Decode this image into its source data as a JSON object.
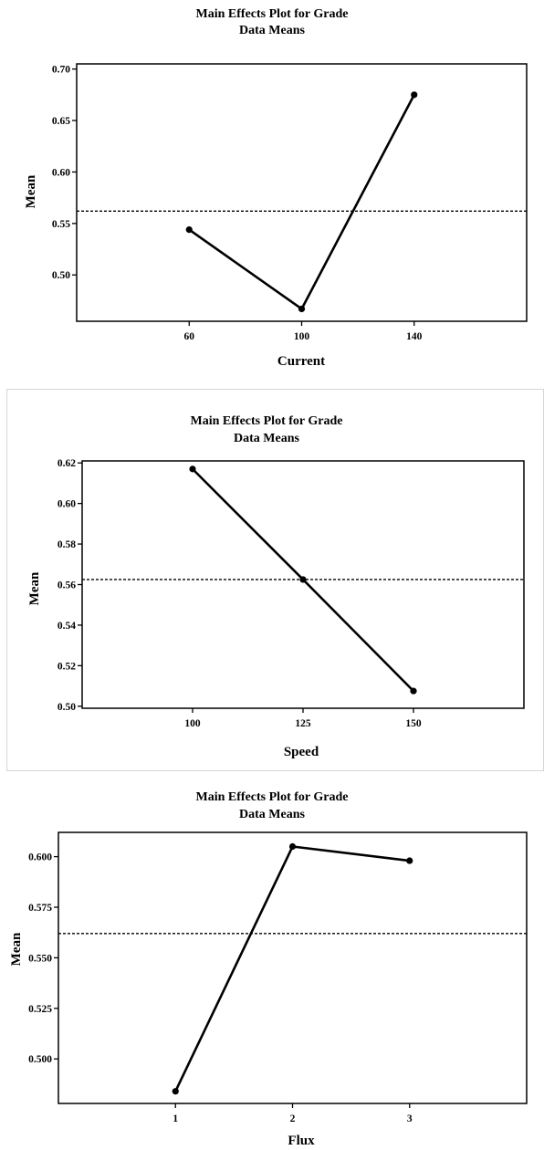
{
  "chart_data": [
    {
      "type": "line",
      "title": "Main Effects Plot for Grade",
      "subtitle": "Data Means",
      "xlabel": "Current",
      "ylabel": "Mean",
      "categories": [
        "60",
        "100",
        "140"
      ],
      "values": [
        0.544,
        0.467,
        0.675
      ],
      "reference_line": 0.562,
      "yticks": [
        0.5,
        0.55,
        0.6,
        0.65,
        0.7
      ],
      "ytick_labels": [
        "0.50",
        "0.55",
        "0.60",
        "0.65",
        "0.70"
      ],
      "ylim": [
        0.455,
        0.705
      ],
      "grid": false
    },
    {
      "type": "line",
      "title": "Main Effects Plot for Grade",
      "subtitle": "Data Means",
      "xlabel": "Speed",
      "ylabel": "Mean",
      "categories": [
        "100",
        "125",
        "150"
      ],
      "values": [
        0.617,
        0.5625,
        0.5075
      ],
      "reference_line": 0.5625,
      "yticks": [
        0.5,
        0.52,
        0.54,
        0.56,
        0.58,
        0.6,
        0.62
      ],
      "ytick_labels": [
        "0.50",
        "0.52",
        "0.54",
        "0.56",
        "0.58",
        "0.60",
        "0.62"
      ],
      "ylim": [
        0.499,
        0.621
      ],
      "grid": false
    },
    {
      "type": "line",
      "title": "Main Effects Plot for Grade",
      "subtitle": "Data Means",
      "xlabel": "Flux",
      "ylabel": "Mean",
      "categories": [
        "1",
        "2",
        "3"
      ],
      "values": [
        0.484,
        0.605,
        0.598
      ],
      "reference_line": 0.562,
      "yticks": [
        0.5,
        0.525,
        0.55,
        0.575,
        0.6
      ],
      "ytick_labels": [
        "0.500",
        "0.525",
        "0.550",
        "0.575",
        "0.600"
      ],
      "ylim": [
        0.478,
        0.612
      ],
      "grid": false
    }
  ]
}
